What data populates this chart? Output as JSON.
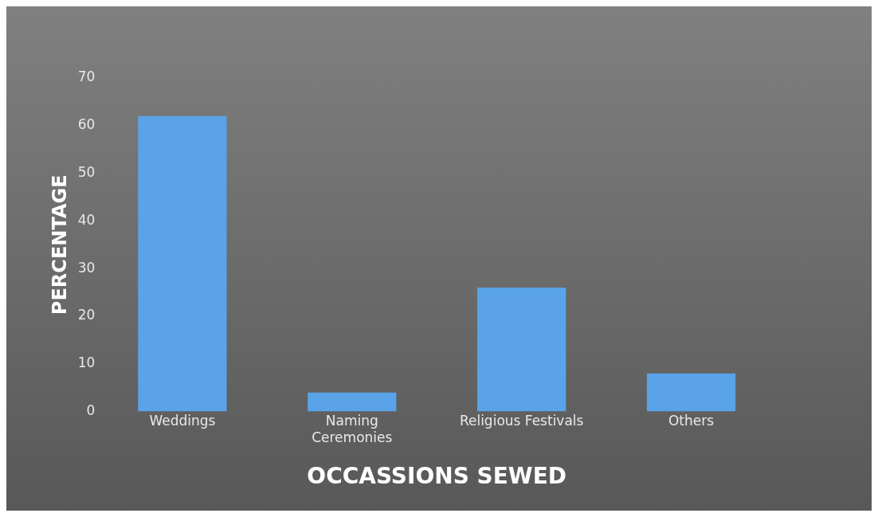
{
  "chart_data": {
    "type": "bar",
    "xlabel": "OCCASSIONS SEWED",
    "ylabel": "PERCENTAGE",
    "categories": [
      "Weddings",
      "Naming Ceremonies",
      "Religious Festivals",
      "Others"
    ],
    "values": [
      62,
      4,
      26,
      8
    ],
    "color": "#5aa3e8",
    "ylim": [
      0,
      70
    ],
    "yticks": [
      0,
      10,
      20,
      30,
      40,
      50,
      60,
      70
    ],
    "grid": false,
    "legend": false
  }
}
